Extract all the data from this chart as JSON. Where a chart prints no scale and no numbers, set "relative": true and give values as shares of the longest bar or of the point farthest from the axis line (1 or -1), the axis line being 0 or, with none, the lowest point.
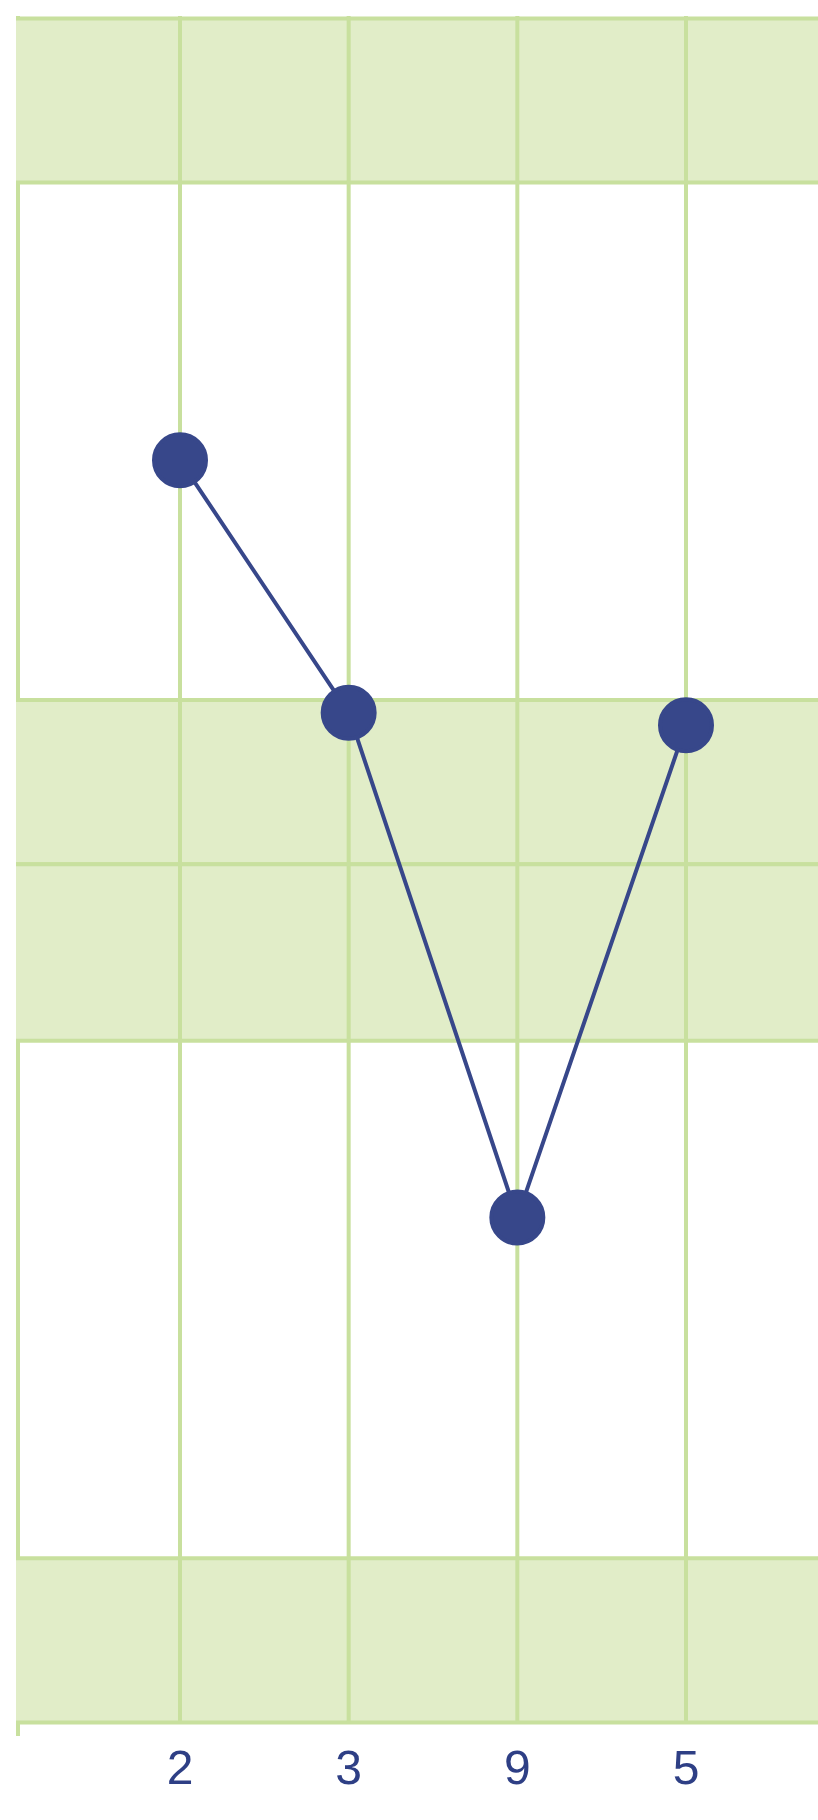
{
  "chart_data": {
    "type": "line",
    "categories": [
      "2",
      "3",
      "9",
      "5"
    ],
    "values": [
      1,
      0.8,
      0.4,
      0.79
    ],
    "color": "#37478a",
    "relative": true,
    "grid": "x",
    "marker": "circle",
    "bands": [
      {
        "axis": "y",
        "from": 1.22,
        "to": 1.35,
        "color": "#e1edc8"
      },
      {
        "axis": "y",
        "from": 0.68,
        "to": 0.81,
        "color": "#e1edc8"
      },
      {
        "axis": "y",
        "from": 0.54,
        "to": 0.68,
        "color": "#e1edc8"
      },
      {
        "axis": "y",
        "from": 0,
        "to": 0.13,
        "color": "#e1edc8"
      }
    ]
  }
}
